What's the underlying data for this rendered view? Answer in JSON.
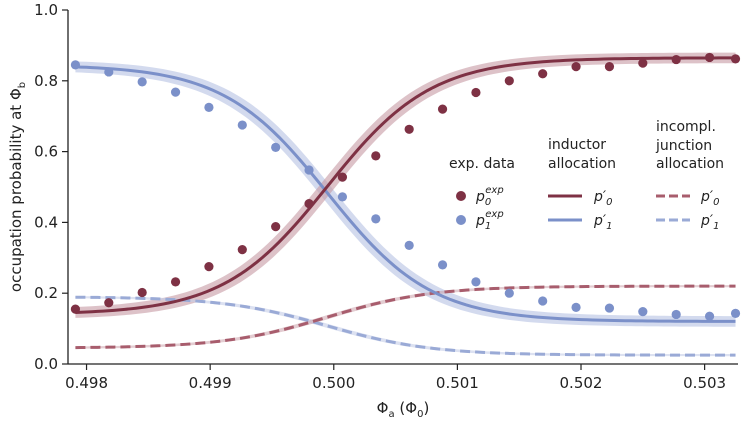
{
  "chart_data": {
    "type": "scatter",
    "xlabel": "Φ",
    "xlabel_sub": "a",
    "xlabel_unit": "(Φ",
    "xlabel_unit_sub": "0",
    "xlabel_unit_close": ")",
    "ylabel": "occupation probability at Φ",
    "ylabel_sub": "b",
    "xlim": [
      0.49785,
      0.50327
    ],
    "ylim": [
      0.0,
      1.0
    ],
    "x_ticks": [
      0.498,
      0.499,
      0.5,
      0.501,
      0.502,
      0.503
    ],
    "x_tick_labels": [
      "0.498",
      "0.499",
      "0.500",
      "0.501",
      "0.502",
      "0.503"
    ],
    "y_ticks": [
      0.0,
      0.2,
      0.4,
      0.6,
      0.8,
      1.0
    ],
    "y_tick_labels": [
      "0.0",
      "0.2",
      "0.4",
      "0.6",
      "0.8",
      "1.0"
    ],
    "grid": false,
    "colors": {
      "p0": "#7e3144",
      "p1": "#7b90c9",
      "p0_band": "#c79aa3",
      "p1_band": "#c4cde8"
    },
    "model": {
      "center": 0.49995,
      "width": 0.00042
    },
    "series": [
      {
        "name": "p0_exp",
        "kind": "points",
        "x": [
          0.49791,
          0.49818,
          0.49845,
          0.49872,
          0.49899,
          0.49926,
          0.49953,
          0.4998,
          0.50007,
          0.50034,
          0.50061,
          0.50088,
          0.50115,
          0.50142,
          0.50169,
          0.50196,
          0.50223,
          0.5025,
          0.50277,
          0.50304,
          0.50325
        ],
        "y": [
          0.155,
          0.173,
          0.202,
          0.232,
          0.275,
          0.323,
          0.388,
          0.453,
          0.528,
          0.588,
          0.663,
          0.72,
          0.767,
          0.8,
          0.82,
          0.84,
          0.84,
          0.85,
          0.86,
          0.866,
          0.862
        ]
      },
      {
        "name": "p1_exp",
        "kind": "points",
        "x": [
          0.49791,
          0.49818,
          0.49845,
          0.49872,
          0.49899,
          0.49926,
          0.49953,
          0.4998,
          0.50007,
          0.50034,
          0.50061,
          0.50088,
          0.50115,
          0.50142,
          0.50169,
          0.50196,
          0.50223,
          0.5025,
          0.50277,
          0.50304,
          0.50325
        ],
        "y": [
          0.845,
          0.825,
          0.797,
          0.768,
          0.725,
          0.675,
          0.612,
          0.548,
          0.472,
          0.41,
          0.335,
          0.28,
          0.232,
          0.2,
          0.178,
          0.16,
          0.158,
          0.148,
          0.14,
          0.135,
          0.143
        ]
      },
      {
        "name": "p0_inductor",
        "kind": "solid",
        "y_min": 0.14,
        "y_max": 0.865,
        "band": 0.03
      },
      {
        "name": "p1_inductor",
        "kind": "solid",
        "y_min": 0.12,
        "y_max": 0.845,
        "band": 0.03
      },
      {
        "name": "p0_junction",
        "kind": "dashed",
        "y_min": 0.045,
        "y_max": 0.22
      },
      {
        "name": "p1_junction",
        "kind": "dashed",
        "y_min": 0.025,
        "y_max": 0.19
      }
    ],
    "legend": {
      "col1_header": "exp. data",
      "col2_header_1": "inductor",
      "col2_header_2": "allocation",
      "col3_header_1": "incompl.",
      "col3_header_2": "junction",
      "col3_header_3": "allocation",
      "p": "p",
      "sup_exp": "exp",
      "prime": "′",
      "sub0": "0",
      "sub1": "1"
    }
  }
}
